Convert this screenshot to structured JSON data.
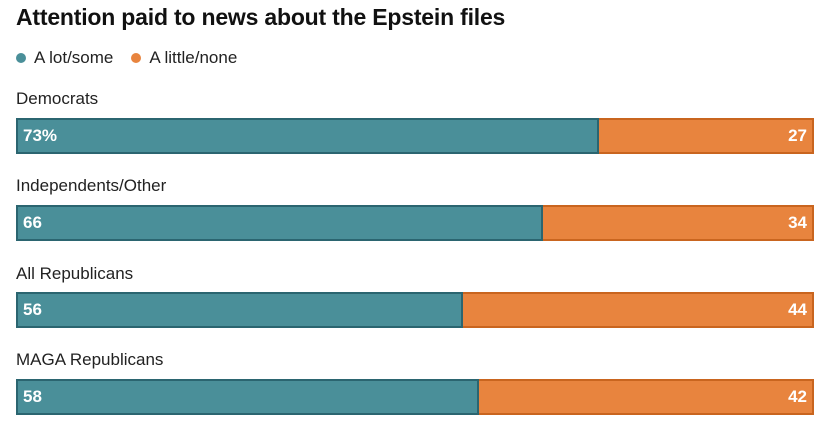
{
  "chart_data": {
    "type": "bar",
    "orientation": "horizontal",
    "stacked": true,
    "title": "Attention paid to news about the Epstein files",
    "categories": [
      "Democrats",
      "Independents/Other",
      "All Republicans",
      "MAGA Republicans"
    ],
    "series": [
      {
        "name": "A lot/some",
        "color": "#4a8f99",
        "values": [
          73,
          66,
          56,
          58
        ],
        "labels": [
          "73%",
          "66",
          "56",
          "58"
        ]
      },
      {
        "name": "A little/none",
        "color": "#e8843e",
        "values": [
          27,
          34,
          44,
          42
        ],
        "labels": [
          "27",
          "34",
          "44",
          "42"
        ]
      }
    ],
    "xlim": [
      0,
      100
    ],
    "legend_position": "top-left",
    "grid": false
  }
}
